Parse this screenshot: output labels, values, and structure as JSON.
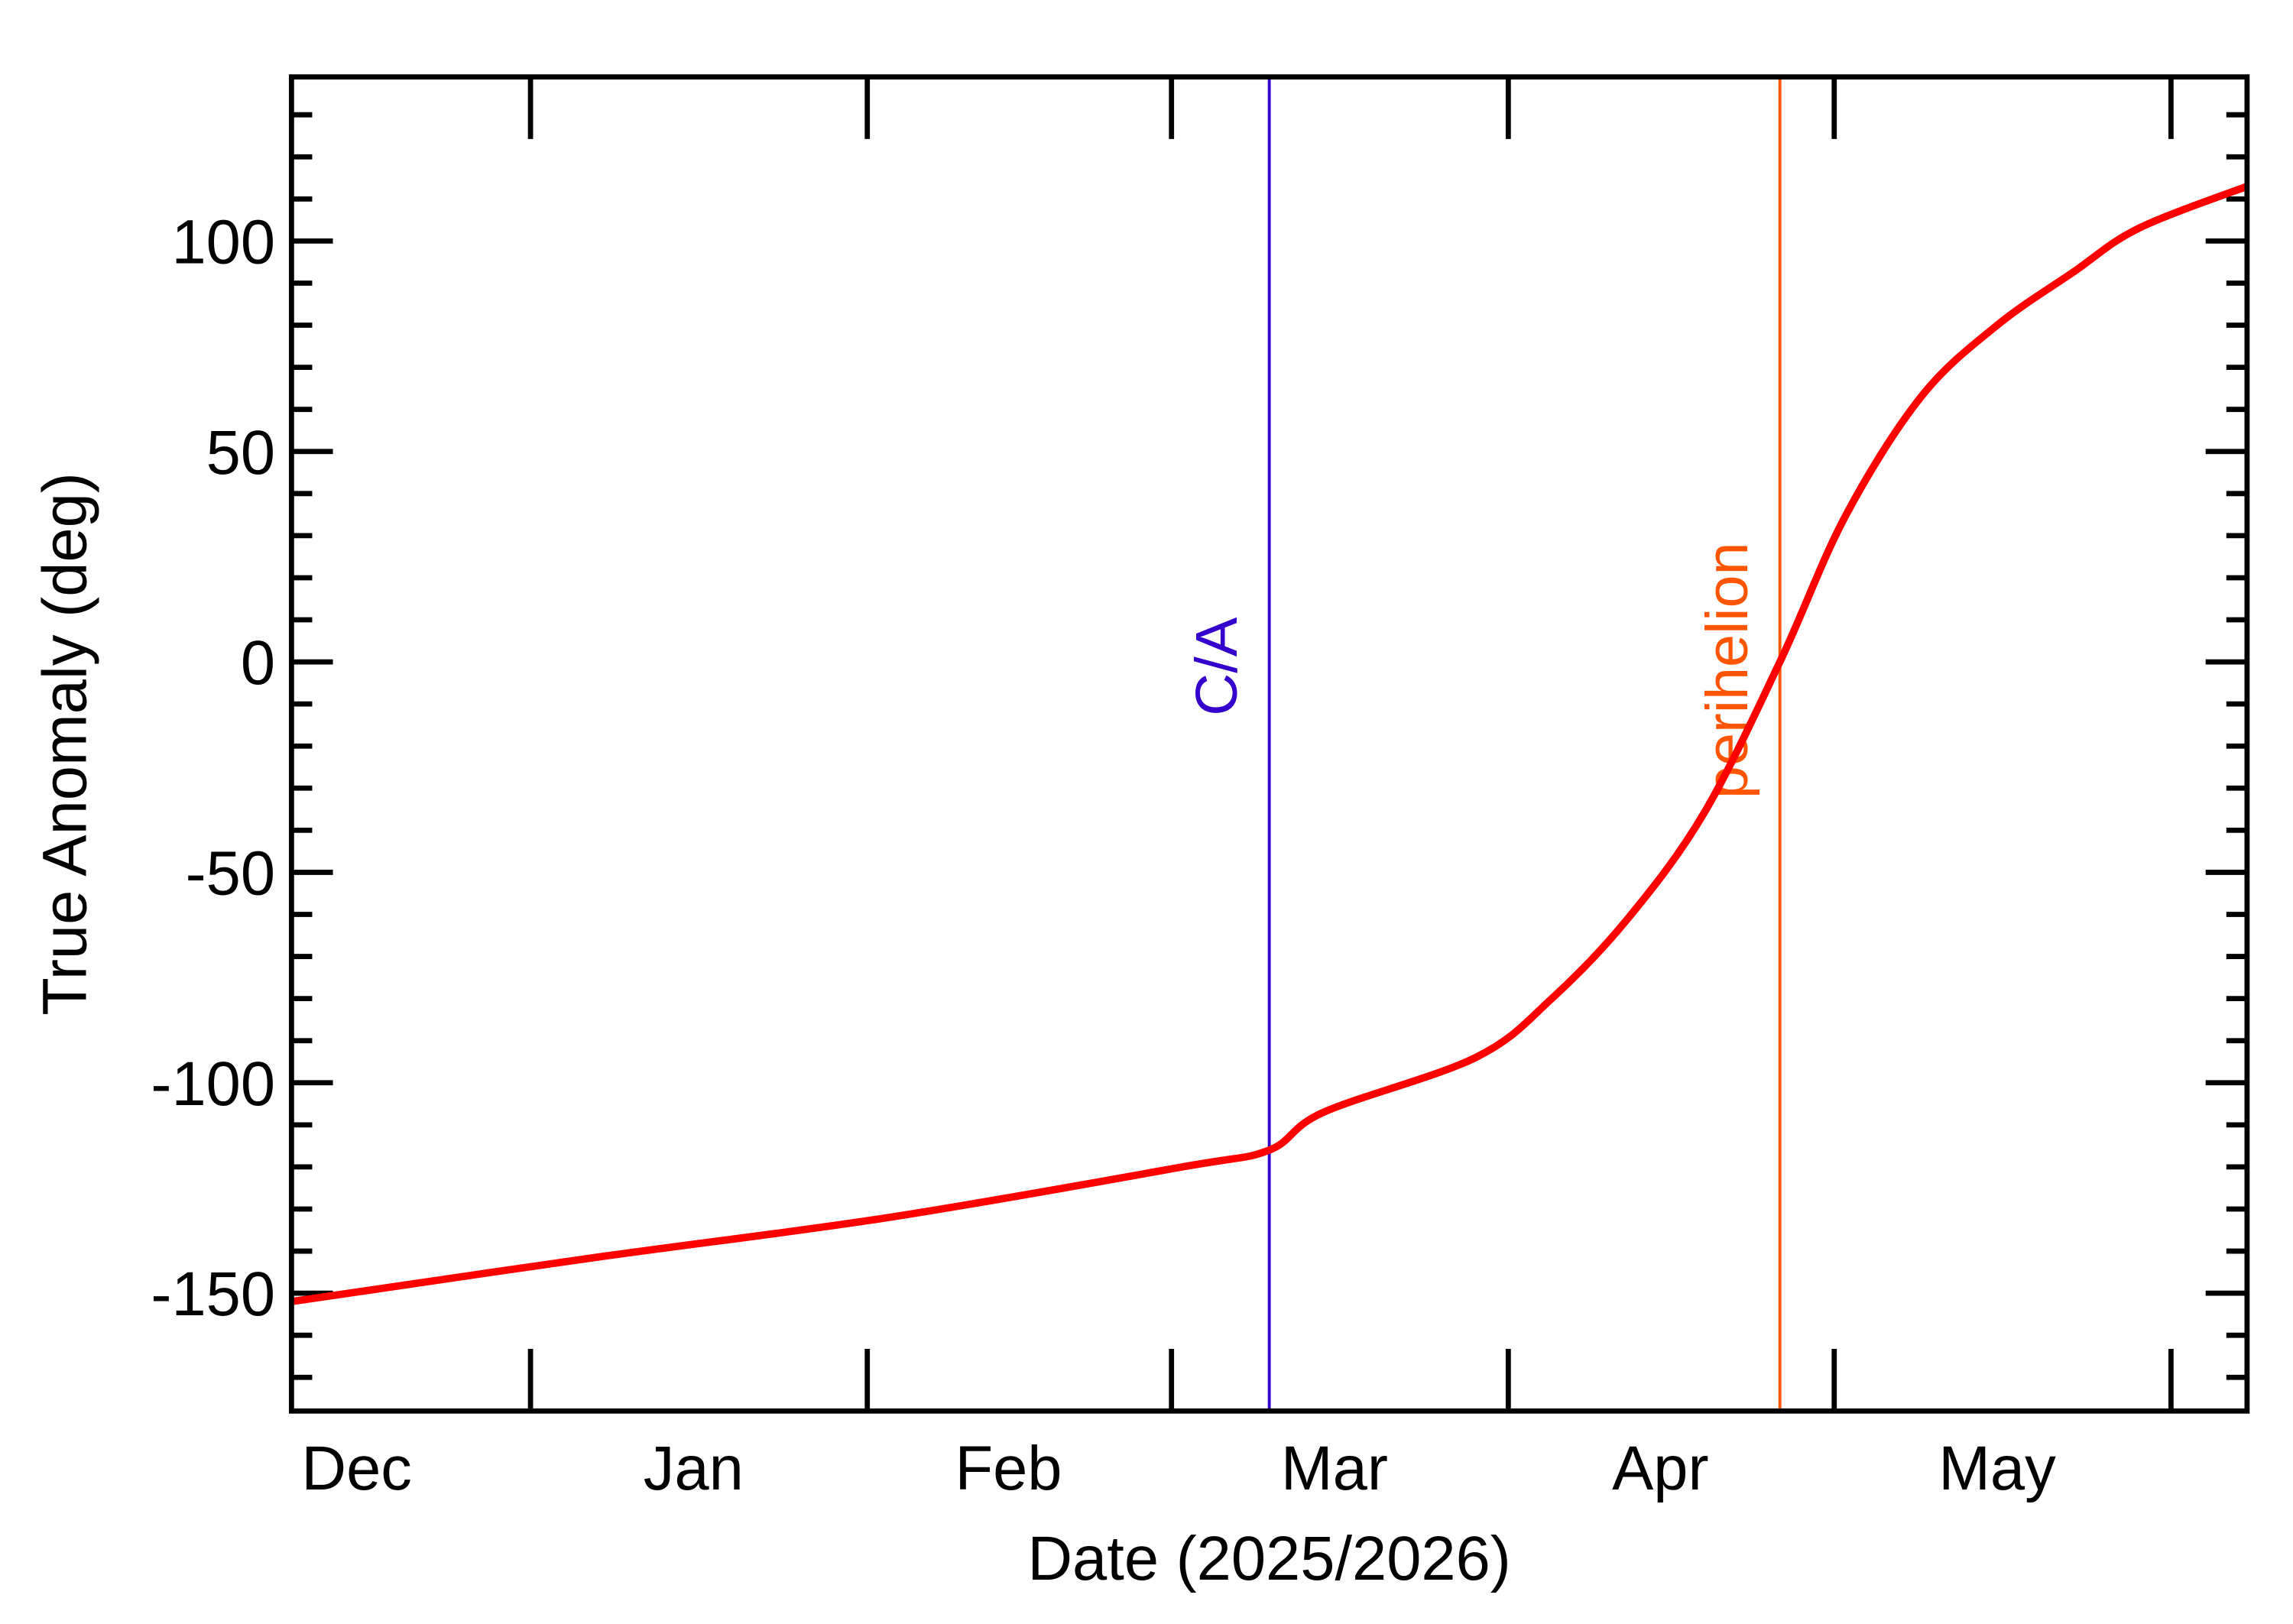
{
  "chart_data": {
    "type": "line",
    "title": "",
    "xlabel": "Date (2025/2026)",
    "ylabel": "True Anomaly (deg)",
    "xlim": [
      "2025-12-10",
      "2026-06-08"
    ],
    "ylim": [
      -178,
      139
    ],
    "x_tick_labels": [
      {
        "label": "Dec",
        "date": "2025-12-16"
      },
      {
        "label": "Jan",
        "date": "2026-01-16"
      },
      {
        "label": "Feb",
        "date": "2026-02-14"
      },
      {
        "label": "Mar",
        "date": "2026-03-16"
      },
      {
        "label": "Apr",
        "date": "2026-04-15"
      },
      {
        "label": "May",
        "date": "2026-05-16"
      }
    ],
    "x_major_ticks": [
      "2026-01-01",
      "2026-02-01",
      "2026-03-01",
      "2026-04-01",
      "2026-05-01",
      "2026-06-01"
    ],
    "y_ticks": [
      -150,
      -100,
      -50,
      0,
      50,
      100
    ],
    "y_tick_labels": [
      "-150",
      "-100",
      "-50",
      "0",
      "50",
      "100"
    ],
    "y_minor_step": 10,
    "grid": false,
    "series": [
      {
        "color": "#ff0000",
        "x": [
          "2025-12-10",
          "2026-01-07",
          "2026-02-03",
          "2026-03-02",
          "2026-03-10",
          "2026-03-15",
          "2026-03-29",
          "2026-04-05",
          "2026-04-12",
          "2026-04-19",
          "2026-04-26",
          "2026-05-02",
          "2026-05-09",
          "2026-05-16",
          "2026-05-23",
          "2026-05-29",
          "2026-06-08"
        ],
        "y": [
          -152,
          -141.5,
          -132,
          -120,
          -116,
          -107,
          -94,
          -80,
          -61,
          -36,
          0,
          34.5,
          63,
          80,
          92.6,
          103,
          113
        ]
      }
    ],
    "annotations": [
      {
        "label": "C/A",
        "date": "2026-03-10",
        "color": "#3300cc"
      },
      {
        "label": "perihelion",
        "date": "2026-04-26",
        "color": "#ff5500"
      }
    ]
  }
}
